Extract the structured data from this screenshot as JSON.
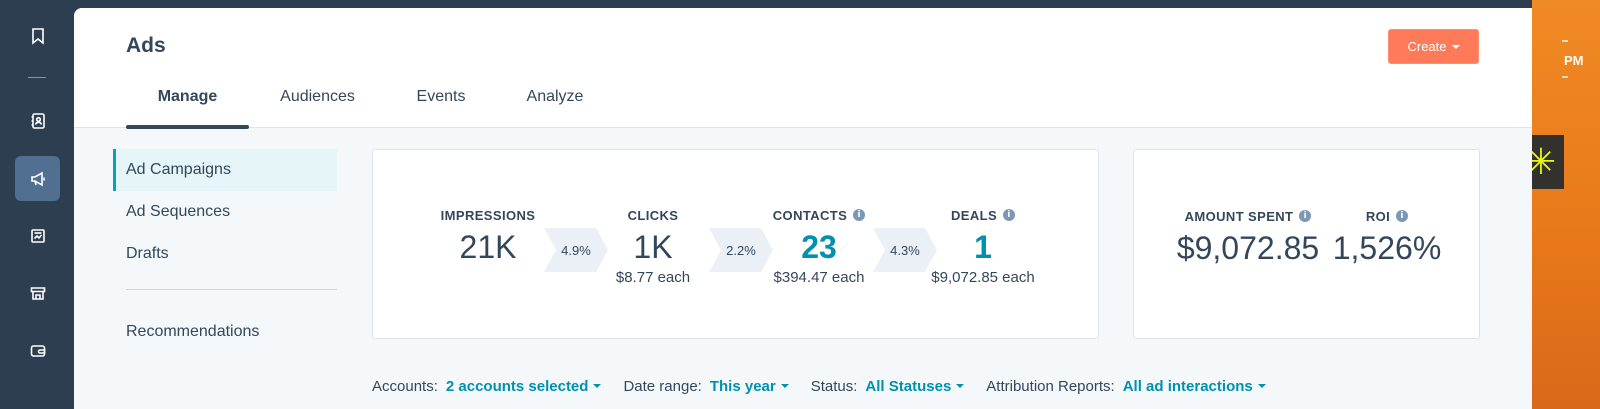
{
  "app": {
    "page_title": "Ads",
    "create_label": "Create",
    "clock_text": "PM"
  },
  "tabs": [
    {
      "label": "Manage",
      "active": true
    },
    {
      "label": "Audiences",
      "active": false
    },
    {
      "label": "Events",
      "active": false
    },
    {
      "label": "Analyze",
      "active": false
    }
  ],
  "subnav": {
    "items": [
      {
        "label": "Ad Campaigns",
        "active": true
      },
      {
        "label": "Ad Sequences",
        "active": false
      },
      {
        "label": "Drafts",
        "active": false
      },
      {
        "label": "Recommendations",
        "active": false
      }
    ]
  },
  "funnel": {
    "impressions": {
      "label": "IMPRESSIONS",
      "value": "21K"
    },
    "clicks": {
      "label": "CLICKS",
      "value": "1K",
      "sub": "$8.77 each"
    },
    "contacts": {
      "label": "CONTACTS",
      "value": "23",
      "sub": "$394.47 each"
    },
    "deals": {
      "label": "DEALS",
      "value": "1",
      "sub": "$9,072.85 each"
    },
    "rates": [
      "4.9%",
      "2.2%",
      "4.3%"
    ]
  },
  "spend": {
    "amount_label": "AMOUNT SPENT",
    "amount_value": "$9,072.85",
    "roi_label": "ROI",
    "roi_value": "1,526%"
  },
  "filters": {
    "accounts_label": "Accounts:",
    "accounts_value": "2 accounts selected",
    "date_label": "Date range:",
    "date_value": "This year",
    "status_label": "Status:",
    "status_value": "All Statuses",
    "attribution_label": "Attribution Reports:",
    "attribution_value": "All ad interactions"
  },
  "icons": {
    "nav": [
      "bookmark-icon",
      "contacts-book-icon",
      "megaphone-icon",
      "report-icon",
      "store-icon",
      "wallet-icon"
    ],
    "info": "i",
    "app_badge_glyph": "✳"
  },
  "colors": {
    "accent_orange": "#ff7a59",
    "link_teal": "#0091ae",
    "nav_dark": "#2d3e50",
    "text": "#33475b"
  }
}
